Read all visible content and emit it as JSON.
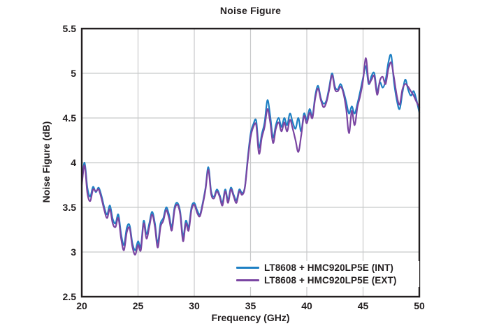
{
  "title": "Noise Figure",
  "colors": {
    "text": "#231f20",
    "frame": "#231f20",
    "grid": "#c8c9ca",
    "background": "#ffffff",
    "series_int": "#1e80c4",
    "series_ext": "#7a45a2"
  },
  "chart_data": {
    "type": "line",
    "title": "Noise Figure",
    "xlabel": "Frequency (GHz)",
    "ylabel": "Noise Figure (dB)",
    "xlim": [
      20,
      50
    ],
    "ylim": [
      2.5,
      5.5
    ],
    "x_tick_labels": [
      "20",
      "25",
      "30",
      "35",
      "40",
      "45",
      "50"
    ],
    "x_tick_values": [
      20,
      25,
      30,
      35,
      40,
      45,
      50
    ],
    "y_tick_labels": [
      "2.5",
      "3",
      "3.5",
      "4",
      "4.5",
      "5",
      "5.5"
    ],
    "y_tick_values": [
      2.5,
      3,
      3.5,
      4,
      4.5,
      5,
      5.5
    ],
    "grid": true,
    "legend_position": "lower right",
    "x_start": 20,
    "x_step": 0.25,
    "series": [
      {
        "name": "LT8608 + HMC920LP5E (INT)",
        "color": "#1e80c4",
        "values": [
          3.77,
          4.0,
          3.72,
          3.62,
          3.73,
          3.67,
          3.72,
          3.63,
          3.5,
          3.42,
          3.52,
          3.37,
          3.32,
          3.42,
          3.2,
          3.08,
          3.27,
          3.3,
          3.1,
          3.02,
          3.12,
          3.06,
          3.35,
          3.2,
          3.32,
          3.45,
          3.32,
          3.1,
          3.32,
          3.38,
          3.5,
          3.42,
          3.28,
          3.5,
          3.55,
          3.45,
          3.17,
          3.35,
          3.28,
          3.5,
          3.55,
          3.47,
          3.42,
          3.55,
          3.72,
          3.95,
          3.68,
          3.62,
          3.7,
          3.64,
          3.55,
          3.7,
          3.58,
          3.72,
          3.64,
          3.58,
          3.7,
          3.66,
          3.73,
          4.05,
          4.32,
          4.43,
          4.47,
          4.17,
          4.32,
          4.45,
          4.7,
          4.52,
          4.28,
          4.42,
          4.5,
          4.4,
          4.5,
          4.42,
          4.55,
          4.45,
          4.38,
          4.5,
          4.35,
          4.55,
          4.48,
          4.6,
          4.52,
          4.75,
          4.86,
          4.72,
          4.66,
          4.7,
          4.85,
          5.0,
          4.85,
          4.82,
          4.88,
          4.8,
          4.68,
          4.55,
          4.63,
          4.55,
          4.66,
          4.8,
          4.95,
          5.08,
          4.88,
          4.97,
          5.0,
          4.8,
          4.9,
          4.84,
          4.92,
          5.12,
          5.2,
          4.9,
          4.7,
          4.6,
          4.78,
          4.93,
          4.82,
          4.75,
          4.8,
          4.7,
          4.56
        ]
      },
      {
        "name": "LT8608 + HMC920LP5E (EXT)",
        "color": "#7a45a2",
        "values": [
          3.75,
          3.97,
          3.66,
          3.57,
          3.7,
          3.68,
          3.7,
          3.6,
          3.47,
          3.38,
          3.48,
          3.32,
          3.28,
          3.38,
          3.15,
          3.02,
          3.22,
          3.27,
          3.06,
          2.97,
          3.08,
          3.02,
          3.32,
          3.15,
          3.28,
          3.42,
          3.28,
          3.05,
          3.28,
          3.35,
          3.47,
          3.38,
          3.24,
          3.47,
          3.53,
          3.42,
          3.12,
          3.32,
          3.24,
          3.47,
          3.53,
          3.44,
          3.4,
          3.53,
          3.7,
          3.92,
          3.65,
          3.6,
          3.68,
          3.62,
          3.52,
          3.68,
          3.55,
          3.7,
          3.62,
          3.55,
          3.68,
          3.64,
          3.72,
          4.02,
          4.28,
          4.4,
          4.42,
          4.1,
          4.28,
          4.4,
          4.6,
          4.45,
          4.22,
          4.38,
          4.45,
          4.35,
          4.45,
          4.35,
          4.48,
          4.38,
          4.25,
          4.12,
          4.3,
          4.52,
          4.44,
          4.56,
          4.5,
          4.72,
          4.83,
          4.7,
          4.62,
          4.68,
          4.82,
          4.98,
          4.82,
          4.8,
          4.85,
          4.78,
          4.6,
          4.33,
          4.58,
          4.42,
          4.62,
          4.75,
          4.92,
          5.17,
          4.9,
          4.93,
          4.97,
          4.76,
          4.92,
          4.96,
          4.88,
          5.05,
          5.12,
          4.95,
          4.75,
          4.65,
          4.82,
          4.88,
          4.85,
          4.8,
          4.75,
          4.68,
          4.62
        ]
      }
    ]
  }
}
